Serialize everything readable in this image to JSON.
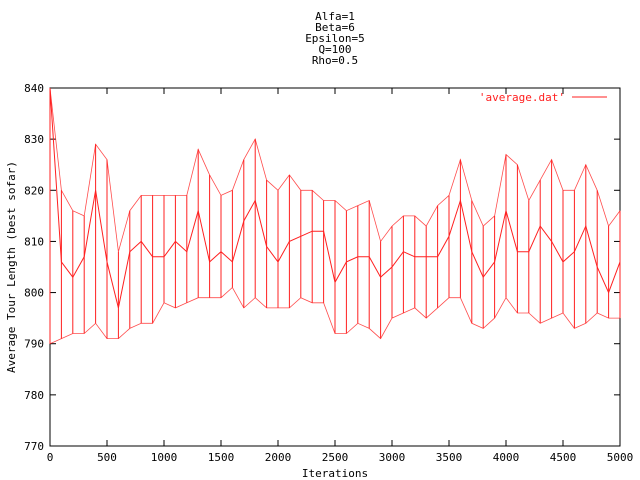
{
  "title_lines": [
    "Alfa=1",
    "Beta=6",
    "Epsilon=5",
    "Q=100",
    "Rho=0.5"
  ],
  "chart_data": {
    "type": "line",
    "title": "Alfa=1 Beta=6 Epsilon=5 Q=100 Rho=0.5",
    "xlabel": "Iterations",
    "ylabel": "Average Tour Length (best sofar)",
    "xlim": [
      0,
      5000
    ],
    "ylim": [
      770,
      840
    ],
    "x_ticks": [
      "0",
      "500",
      "1000",
      "1500",
      "2000",
      "2500",
      "3000",
      "3500",
      "4000",
      "4500",
      "5000"
    ],
    "y_ticks": [
      "770",
      "780",
      "790",
      "800",
      "810",
      "820",
      "830",
      "840"
    ],
    "grid": false,
    "legend_position": "top-right",
    "series": [
      {
        "name": "'average.dat'",
        "color": "#ff2020",
        "x": [
          0,
          100,
          200,
          300,
          400,
          500,
          600,
          700,
          800,
          900,
          1000,
          1100,
          1200,
          1300,
          1400,
          1500,
          1600,
          1700,
          1800,
          1900,
          2000,
          2100,
          2200,
          2300,
          2400,
          2500,
          2600,
          2700,
          2800,
          2900,
          3000,
          3100,
          3200,
          3300,
          3400,
          3500,
          3600,
          3700,
          3800,
          3900,
          4000,
          4100,
          4200,
          4300,
          4400,
          4500,
          4600,
          4700,
          4800,
          4900,
          5000
        ],
        "values": [
          840,
          806,
          803,
          807,
          820,
          806,
          797,
          808,
          810,
          807,
          807,
          810,
          808,
          816,
          806,
          808,
          806,
          814,
          818,
          809,
          806,
          810,
          811,
          812,
          812,
          802,
          806,
          807,
          807,
          803,
          805,
          808,
          807,
          807,
          807,
          811,
          818,
          808,
          803,
          806,
          816,
          808,
          808,
          813,
          810,
          806,
          808,
          813,
          805,
          800,
          806
        ],
        "min": [
          790,
          791,
          792,
          792,
          794,
          791,
          791,
          793,
          794,
          794,
          798,
          797,
          798,
          799,
          799,
          799,
          801,
          797,
          799,
          797,
          797,
          797,
          799,
          798,
          798,
          792,
          792,
          794,
          793,
          791,
          795,
          796,
          797,
          795,
          797,
          799,
          799,
          794,
          793,
          795,
          799,
          796,
          796,
          794,
          795,
          796,
          793,
          794,
          796,
          795,
          795
        ],
        "max": [
          840,
          820,
          816,
          815,
          829,
          826,
          808,
          816,
          819,
          819,
          819,
          819,
          819,
          828,
          823,
          819,
          820,
          826,
          830,
          822,
          820,
          823,
          820,
          820,
          818,
          818,
          816,
          817,
          818,
          810,
          813,
          815,
          815,
          813,
          817,
          819,
          826,
          818,
          813,
          815,
          827,
          825,
          818,
          822,
          826,
          820,
          820,
          825,
          820,
          813,
          816
        ]
      }
    ]
  }
}
